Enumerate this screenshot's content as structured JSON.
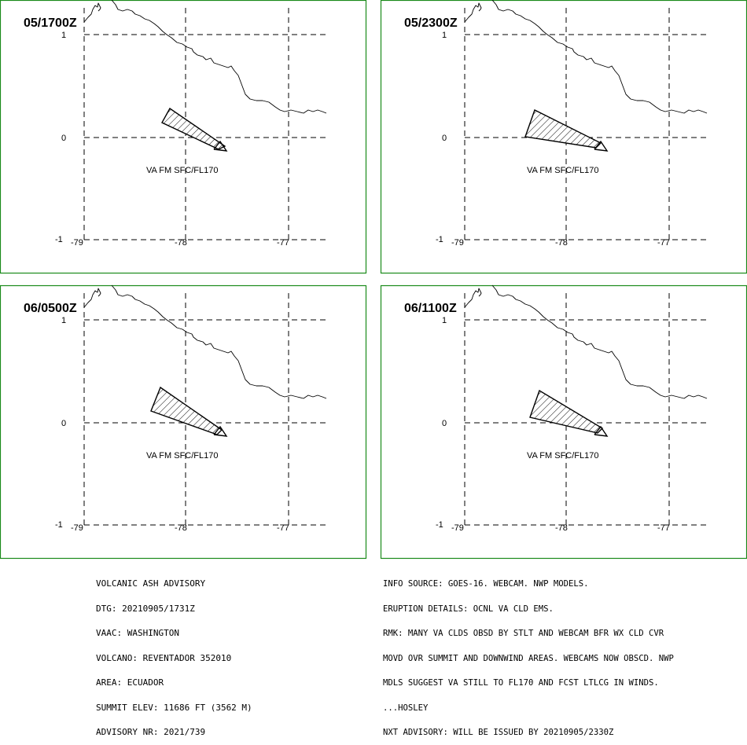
{
  "panels": [
    {
      "time": "05/1700Z",
      "label": "VA FM SFC/FL170"
    },
    {
      "time": "05/2300Z",
      "label": "VA FM SFC/FL170"
    },
    {
      "time": "06/0500Z",
      "label": "VA FM SFC/FL170"
    },
    {
      "time": "06/1100Z",
      "label": "VA FM SFC/FL170"
    }
  ],
  "axes": {
    "lat_ticks": [
      "1",
      "0",
      "-1"
    ],
    "lon_ticks": [
      "-79",
      "-78",
      "-77"
    ]
  },
  "advisory_left": [
    "VOLCANIC ASH ADVISORY",
    "DTG: 20210905/1731Z",
    "VAAC: WASHINGTON",
    "VOLCANO: REVENTADOR 352010",
    "AREA: ECUADOR",
    "SUMMIT ELEV: 11686 FT (3562 M)",
    "ADVISORY NR: 2021/739"
  ],
  "advisory_right": [
    "INFO SOURCE: GOES-16. WEBCAM. NWP MODELS.",
    "ERUPTION DETAILS: OCNL VA CLD EMS.",
    "RMK: MANY VA CLDS OBSD BY STLT AND WEBCAM BFR WX CLD CVR",
    "MOVD OVR SUMMIT AND DOWNWIND AREAS. WEBCAMS NOW OBSCD. NWP",
    "MDLS SUGGEST VA STILL TO FL170 AND FCST LTLCG IN WINDS.",
    "...HOSLEY",
    "NXT ADVISORY: WILL BE ISSUED BY 20210905/2330Z"
  ],
  "colors": {
    "frame": "#1a8a1a"
  }
}
